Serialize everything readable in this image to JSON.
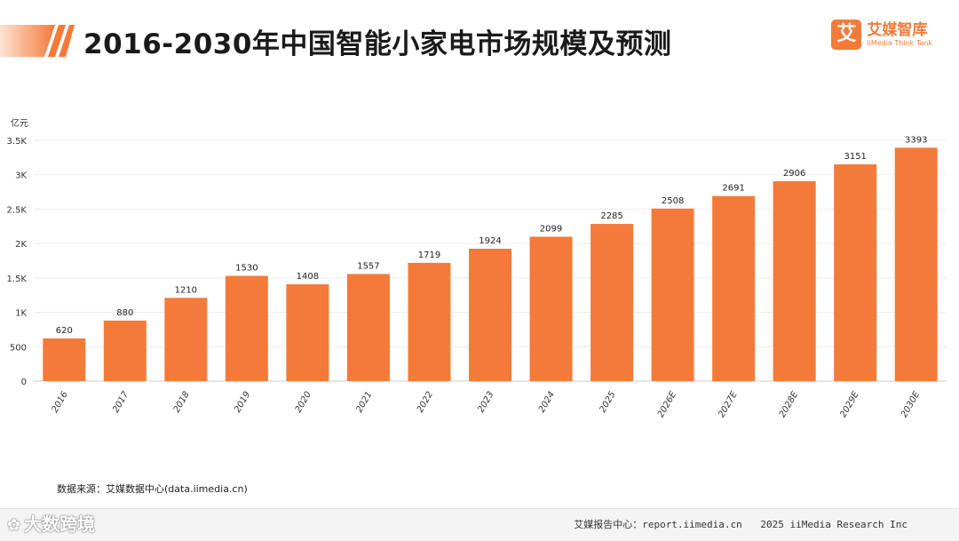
{
  "header": {
    "title": "2016-2030年中国智能小家电市场规模及预测",
    "brand_logo_char": "艾",
    "brand_name": "艾媒智库",
    "brand_sub": "iiMedia Think Tank"
  },
  "chart_data": {
    "type": "bar",
    "title": "2016-2030年中国智能小家电市场规模及预测",
    "ylabel": "亿元",
    "xlabel": "",
    "categories": [
      "2016",
      "2017",
      "2018",
      "2019",
      "2020",
      "2021",
      "2022",
      "2023",
      "2024",
      "2025",
      "2026E",
      "2027E",
      "2028E",
      "2029E",
      "2030E"
    ],
    "values": [
      620,
      880,
      1210,
      1530,
      1408,
      1557,
      1719,
      1924,
      2099,
      2285,
      2508,
      2691,
      2906,
      3151,
      3393
    ],
    "ylim": [
      0,
      3500
    ],
    "yticks": [
      0,
      500,
      1000,
      1500,
      2000,
      2500,
      3000,
      3500
    ],
    "ytick_labels": [
      "0",
      "500",
      "1K",
      "1.5K",
      "2K",
      "2.5K",
      "3K",
      "3.5K"
    ],
    "grid": true,
    "bar_color": "#f47a3a"
  },
  "footer": {
    "source": "数据来源：艾媒数据中心(data.iimedia.cn)",
    "report_center": "艾媒报告中心：report.iimedia.cn",
    "copyright": "2025 iiMedia Research Inc",
    "watermark": "大数跨境"
  }
}
